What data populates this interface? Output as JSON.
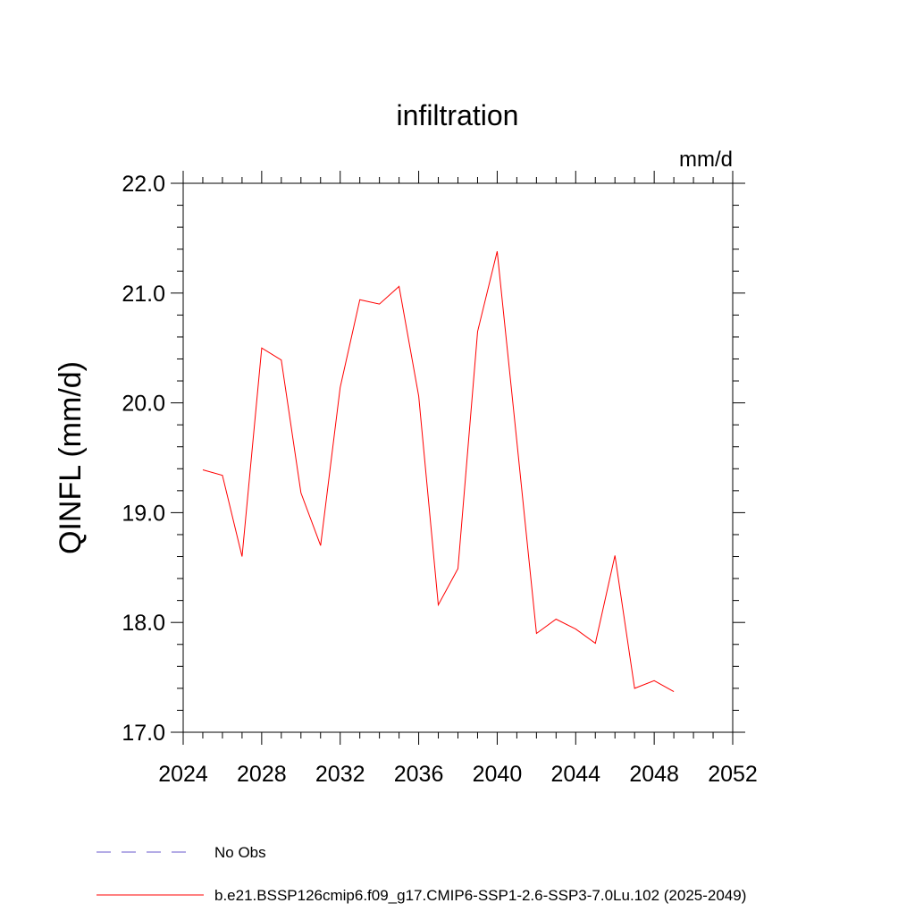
{
  "chart_data": {
    "type": "line",
    "title": "infiltration",
    "units": "mm/d",
    "xlabel": "",
    "ylabel": "QINFL  (mm/d)",
    "xlim": [
      2024,
      2052
    ],
    "ylim": [
      17.0,
      22.0
    ],
    "x_ticks": [
      2024,
      2028,
      2032,
      2036,
      2040,
      2044,
      2048,
      2052
    ],
    "y_ticks": [
      17.0,
      18.0,
      19.0,
      20.0,
      21.0,
      22.0
    ],
    "x_tick_labels": [
      "2024",
      "2028",
      "2032",
      "2036",
      "2040",
      "2044",
      "2048",
      "2052"
    ],
    "y_tick_labels": [
      "17.0",
      "18.0",
      "19.0",
      "20.0",
      "21.0",
      "22.0"
    ],
    "grid": false,
    "legend_position": "bottom",
    "series": [
      {
        "name": "b.e21.BSSP126cmip6.f09_g17.CMIP6-SSP1-2.6-SSP3-7.0Lu.102 (2025-2049)",
        "color": "#ff0000",
        "style": "solid",
        "x": [
          2025,
          2026,
          2027,
          2028,
          2029,
          2030,
          2031,
          2032,
          2033,
          2034,
          2035,
          2036,
          2037,
          2038,
          2039,
          2040,
          2041,
          2042,
          2043,
          2044,
          2045,
          2046,
          2047,
          2048,
          2049
        ],
        "values": [
          19.39,
          19.34,
          18.6,
          20.5,
          20.39,
          19.18,
          18.7,
          20.14,
          20.94,
          20.9,
          21.06,
          20.06,
          18.16,
          18.49,
          20.65,
          21.38,
          19.65,
          17.9,
          18.03,
          17.94,
          17.81,
          18.61,
          17.4,
          17.47,
          17.37
        ]
      },
      {
        "name": "No Obs",
        "color": "#6a5acd",
        "style": "dashed",
        "x": [],
        "values": []
      }
    ]
  }
}
